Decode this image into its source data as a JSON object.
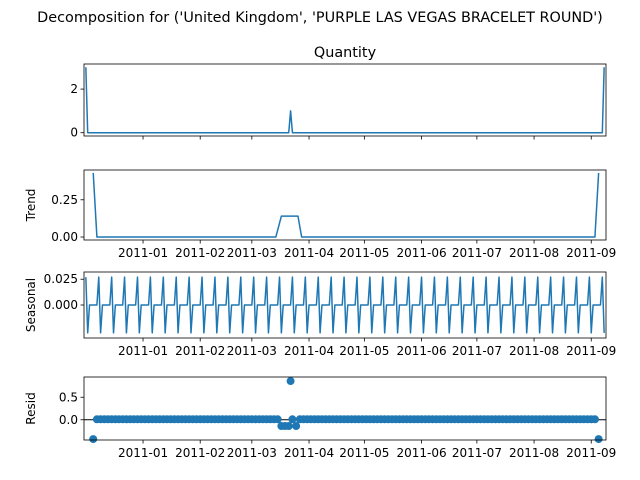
{
  "figure": {
    "suptitle": "Decomposition for ('United Kingdom', 'PURPLE LAS VEGAS BRACELET ROUND')",
    "line_color": "#1f77b4"
  },
  "chart_data": [
    {
      "type": "line",
      "title": "Quantity",
      "ylabel": "",
      "ylim": [
        -0.15,
        3.15
      ],
      "yticks": [
        "0",
        "2"
      ],
      "ytick_values": [
        0,
        2
      ],
      "xticks": [
        "2011-01",
        "2011-02",
        "2011-03",
        "2011-04",
        "2011-05",
        "2011-06",
        "2011-07",
        "2011-08",
        "2011-09"
      ],
      "xticks_shown": false,
      "series": [
        {
          "points": [
            [
              "2010-12-01",
              3
            ],
            [
              "2010-12-02",
              0
            ],
            [
              "2011-03-21",
              0
            ],
            [
              "2011-03-22",
              1
            ],
            [
              "2011-03-23",
              0
            ],
            [
              "2011-09-07",
              0
            ],
            [
              "2011-09-08",
              3
            ]
          ]
        }
      ]
    },
    {
      "type": "line",
      "title": "",
      "ylabel": "Trend",
      "ylim": [
        -0.02,
        0.45
      ],
      "yticks": [
        "0.00",
        "0.25"
      ],
      "ytick_values": [
        0,
        0.25
      ],
      "xticks": [
        "2011-01",
        "2011-02",
        "2011-03",
        "2011-04",
        "2011-05",
        "2011-06",
        "2011-07",
        "2011-08",
        "2011-09"
      ],
      "xticks_shown": true,
      "series": [
        {
          "points": [
            [
              "2010-12-05",
              0.43
            ],
            [
              "2010-12-07",
              0
            ],
            [
              "2011-03-14",
              0
            ],
            [
              "2011-03-17",
              0.14
            ],
            [
              "2011-03-26",
              0.14
            ],
            [
              "2011-03-28",
              0
            ],
            [
              "2011-09-03",
              0
            ],
            [
              "2011-09-05",
              0.43
            ]
          ]
        }
      ]
    },
    {
      "type": "line",
      "title": "",
      "ylabel": "Seasonal",
      "ylim": [
        -0.032,
        0.032
      ],
      "yticks": [
        "0.000",
        "0.025"
      ],
      "ytick_values": [
        0,
        0.025
      ],
      "xticks": [
        "2011-01",
        "2011-02",
        "2011-03",
        "2011-04",
        "2011-05",
        "2011-06",
        "2011-07",
        "2011-08",
        "2011-09"
      ],
      "xticks_shown": true,
      "period_days": 7,
      "start": "2010-12-01",
      "end": "2011-09-08",
      "weekly_pattern": [
        0.027,
        -0.027,
        0,
        0,
        0,
        0,
        0
      ]
    },
    {
      "type": "scatter",
      "title": "",
      "ylabel": "Resid",
      "ylim": [
        -0.45,
        0.95
      ],
      "yticks": [
        "0.0",
        "0.5"
      ],
      "ytick_values": [
        0,
        0.5
      ],
      "xticks": [
        "2011-01",
        "2011-02",
        "2011-03",
        "2011-04",
        "2011-05",
        "2011-06",
        "2011-07",
        "2011-08",
        "2011-09"
      ],
      "xticks_shown": true,
      "baseline": 0,
      "default_value": 0.01,
      "start": "2010-12-05",
      "end": "2011-09-05",
      "step_days": 2,
      "special_points": [
        [
          "2010-12-05",
          -0.43
        ],
        [
          "2011-03-17",
          -0.14
        ],
        [
          "2011-03-19",
          -0.14
        ],
        [
          "2011-03-21",
          -0.14
        ],
        [
          "2011-03-22",
          0.86
        ],
        [
          "2011-03-25",
          -0.14
        ],
        [
          "2011-09-05",
          -0.43
        ]
      ]
    }
  ]
}
